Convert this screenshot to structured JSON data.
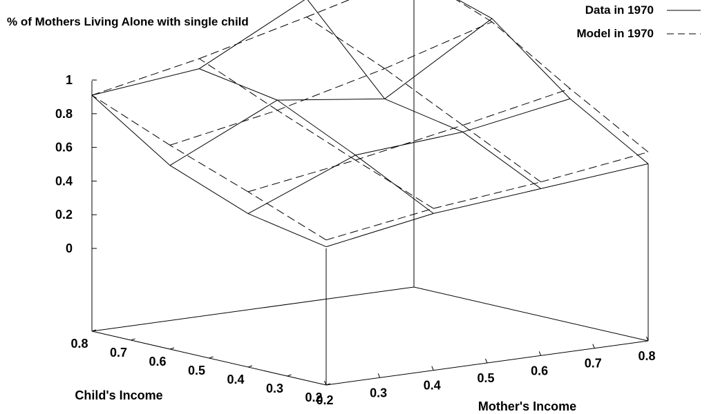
{
  "chart_data": {
    "type": "surface",
    "title": "% of Mothers Living Alone with single child",
    "xlabel": "Mother's Income",
    "ylabel": "Child's Income",
    "x": [
      0.2,
      0.4,
      0.6,
      0.8
    ],
    "y": [
      0.2,
      0.4,
      0.6,
      0.8
    ],
    "x_ticks": [
      "0.2",
      "0.3",
      "0.4",
      "0.5",
      "0.6",
      "0.7",
      "0.8"
    ],
    "y_ticks": [
      "0.2",
      "0.3",
      "0.4",
      "0.5",
      "0.6",
      "0.7",
      "0.8"
    ],
    "z_ticks": [
      "0",
      "0.2",
      "0.4",
      "0.6",
      "0.8",
      "1"
    ],
    "zlim": [
      0,
      1
    ],
    "legend_position": "top-right",
    "grid": false,
    "series": [
      {
        "name": "Data in 1970",
        "style": "solid",
        "values": [
          [
            0.01,
            0.12,
            0.18,
            0.24
          ],
          [
            0.1,
            0.36,
            0.41,
            0.52
          ],
          [
            0.28,
            0.58,
            0.5,
            0.89
          ],
          [
            0.59,
            0.66,
            0.99,
            1.04
          ]
        ]
      },
      {
        "name": "Model in 1970",
        "style": "dashed",
        "values": [
          [
            0.05,
            0.15,
            0.22,
            0.31
          ],
          [
            0.23,
            0.33,
            0.45,
            0.58
          ],
          [
            0.4,
            0.52,
            0.68,
            0.87
          ],
          [
            0.59,
            0.72,
            0.88,
            1.05
          ]
        ]
      }
    ]
  }
}
